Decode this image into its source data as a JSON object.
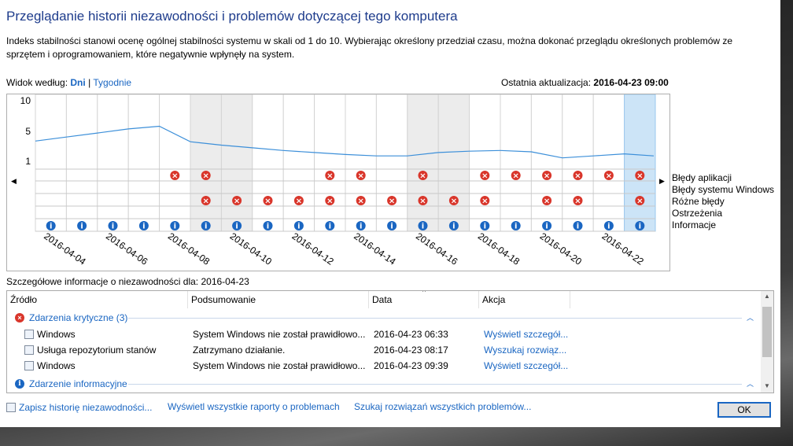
{
  "title": "Przeglądanie historii niezawodności i problemów dotyczącej tego komputera",
  "description": "Indeks stabilności stanowi ocenę ogólnej stabilności systemu w skali od 1 do 10. Wybierając określony przedział czasu, można dokonać przeglądu określonych problemów ze sprzętem i oprogramowaniem, które negatywnie wpłynęły na system.",
  "view_by": {
    "label": "Widok według:",
    "days": "Dni",
    "sep": "|",
    "weeks": "Tygodnie"
  },
  "last_update": {
    "label": "Ostatnia aktualizacja:",
    "value": "2016-04-23 09:00"
  },
  "chart_data": {
    "type": "line",
    "yticks": [
      "10",
      "5",
      "1"
    ],
    "ylim": [
      1,
      10
    ],
    "dates": [
      "2016-04-04",
      "2016-04-05",
      "2016-04-06",
      "2016-04-07",
      "2016-04-08",
      "2016-04-09",
      "2016-04-10",
      "2016-04-11",
      "2016-04-12",
      "2016-04-13",
      "2016-04-14",
      "2016-04-15",
      "2016-04-16",
      "2016-04-17",
      "2016-04-18",
      "2016-04-19",
      "2016-04-20",
      "2016-04-21",
      "2016-04-22",
      "2016-04-23"
    ],
    "x_labels": [
      "2016-04-04",
      "2016-04-06",
      "2016-04-08",
      "2016-04-10",
      "2016-04-12",
      "2016-04-14",
      "2016-04-16",
      "2016-04-18",
      "2016-04-20",
      "2016-04-22"
    ],
    "series": [
      {
        "values": [
          4.0,
          4.6,
          5.2,
          5.8,
          6.2,
          3.9,
          3.4,
          3.0,
          2.6,
          2.3,
          2.0,
          1.8,
          1.8,
          2.3,
          2.5,
          2.6,
          2.4,
          1.5,
          1.8,
          2.1
        ]
      }
    ],
    "event_rows": [
      "Błędy aplikacji",
      "Błędy systemu Windows",
      "Różne błędy",
      "Ostrzeżenia",
      "Informacje"
    ],
    "app_errors": [
      0,
      0,
      0,
      0,
      1,
      1,
      0,
      0,
      0,
      1,
      1,
      0,
      1,
      0,
      1,
      1,
      1,
      1,
      1,
      1
    ],
    "misc_errors": [
      0,
      0,
      0,
      0,
      0,
      1,
      1,
      1,
      1,
      1,
      1,
      1,
      1,
      1,
      1,
      0,
      1,
      1,
      0,
      1
    ],
    "information": [
      1,
      1,
      1,
      1,
      1,
      1,
      1,
      1,
      1,
      1,
      1,
      1,
      1,
      1,
      1,
      1,
      1,
      1,
      1,
      1
    ],
    "selected_date": "2016-04-23"
  },
  "details_label": "Szczegółowe informacje o niezawodności dla: 2016-04-23",
  "columns": [
    "Źródło",
    "Podsumowanie",
    "Data",
    "Akcja"
  ],
  "groups": [
    {
      "title": "Zdarzenia krytyczne (3)",
      "icon": "error-icon"
    },
    {
      "title": "Zdarzenie informacyjne",
      "icon": "info-icon"
    }
  ],
  "rows": [
    {
      "source": "Windows",
      "summary": "System Windows nie został prawidłowo...",
      "date": "2016-04-23 06:33",
      "action": "Wyświetl szczegół..."
    },
    {
      "source": "Usługa repozytorium stanów",
      "summary": "Zatrzymano działanie.",
      "date": "2016-04-23 08:17",
      "action": "Wyszukaj rozwiąz..."
    },
    {
      "source": "Windows",
      "summary": "System Windows nie został prawidłowo...",
      "date": "2016-04-23 09:39",
      "action": "Wyświetl szczegół..."
    }
  ],
  "footer": {
    "save": "Zapisz historię niezawodności...",
    "all_reports": "Wyświetl wszystkie raporty o problemach",
    "search_all": "Szukaj rozwiązań wszystkich problemów...",
    "ok": "OK"
  }
}
